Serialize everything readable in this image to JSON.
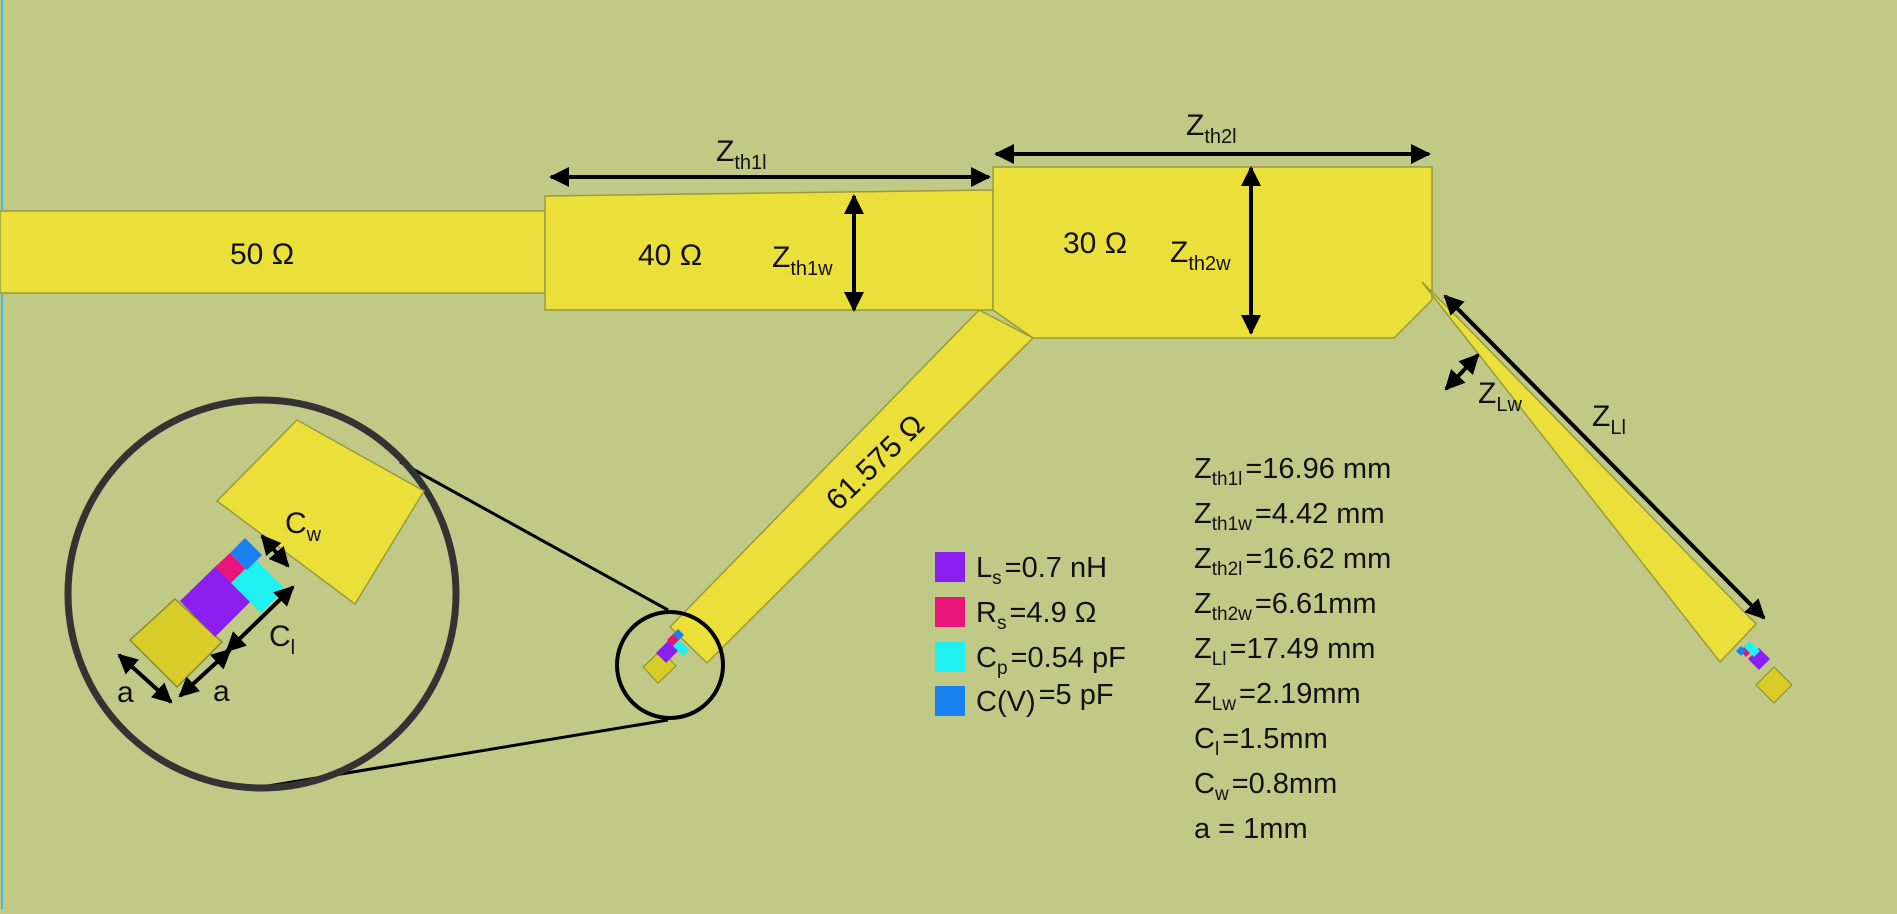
{
  "colors": {
    "background": "#c0ca86",
    "microstrip": "#ebe03a",
    "microstrip_edge": "#9a9a3a",
    "pad": "#d8cc28",
    "Ls": "#8a1ff0",
    "Rs": "#e8167a",
    "Cp": "#1ff0f0",
    "CV": "#1a82f0",
    "arrow": "#000000",
    "magnifier": "#333333"
  },
  "icons": {
    "magnifier": "circle-zoom-icon",
    "legend_swatch": "square-swatch-icon"
  },
  "impedances": {
    "z50": "50 Ω",
    "z40": "40 Ω",
    "z30": "30 Ω",
    "z61": "61.575 Ω"
  },
  "dimension_labels": {
    "zth1l": {
      "main": "Z",
      "sub": "th1l"
    },
    "zth1w": {
      "main": "Z",
      "sub": "th1w"
    },
    "zth2l": {
      "main": "Z",
      "sub": "th2l"
    },
    "zth2w": {
      "main": "Z",
      "sub": "th2w"
    },
    "zlw": {
      "main": "Z",
      "sub": "Lw"
    },
    "zll": {
      "main": "Z",
      "sub": "Ll"
    },
    "cw": {
      "main": "C",
      "sub": "w"
    },
    "cl": {
      "main": "C",
      "sub": "l"
    },
    "a1": "a",
    "a2": "a"
  },
  "legend": [
    {
      "main": "L",
      "sub": "s",
      "value": "=0.7 nH",
      "color": "#8a1ff0"
    },
    {
      "main": "R",
      "sub": "s",
      "value": "=4.9 Ω",
      "color": "#e8167a"
    },
    {
      "main": "C",
      "sub": "p",
      "value": "=0.54 pF",
      "color": "#1ff0f0"
    },
    {
      "main": "C(V)",
      "sub": "",
      "value": "=5 pF",
      "color": "#1a82f0"
    }
  ],
  "dimensions": [
    {
      "main": "Z",
      "sub": "th1l",
      "value": "=16.96 mm"
    },
    {
      "main": "Z",
      "sub": "th1w",
      "value": "=4.42 mm"
    },
    {
      "main": "Z",
      "sub": "th2l",
      "value": "=16.62 mm"
    },
    {
      "main": "Z",
      "sub": "th2w",
      "value": "=6.61mm"
    },
    {
      "main": "Z",
      "sub": "Ll",
      "value": "=17.49 mm"
    },
    {
      "main": "Z",
      "sub": "Lw",
      "value": "=2.19mm"
    },
    {
      "main": "C",
      "sub": "l",
      "value": "=1.5mm"
    },
    {
      "main": "C",
      "sub": "w",
      "value": "=0.8mm"
    },
    {
      "main": "a = 1mm",
      "sub": "",
      "value": ""
    }
  ]
}
